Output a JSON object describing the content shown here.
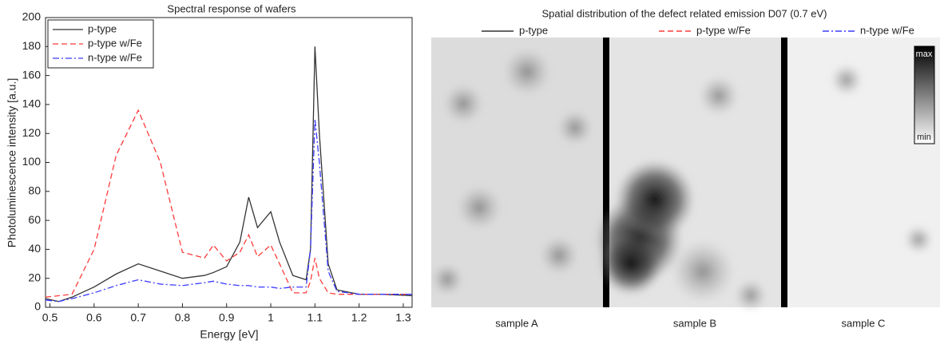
{
  "chart_data": {
    "type": "line",
    "title": "Spectral response of wafers",
    "x_label": "Energy [eV]",
    "y_label": "Photoluminescence intensity [a.u.]",
    "x": [
      0.49,
      0.52,
      0.55,
      0.6,
      0.65,
      0.7,
      0.75,
      0.8,
      0.85,
      0.87,
      0.9,
      0.93,
      0.95,
      0.97,
      1.0,
      1.02,
      1.05,
      1.08,
      1.09,
      1.1,
      1.11,
      1.13,
      1.15,
      1.2,
      1.25,
      1.32
    ],
    "series": [
      {
        "name": "p-type",
        "color": "#333333",
        "linestyle": "solid",
        "values": [
          6,
          4,
          7,
          14,
          23,
          30,
          25,
          20,
          22,
          24,
          28,
          45,
          76,
          55,
          66,
          45,
          22,
          19,
          40,
          180,
          120,
          30,
          12,
          9,
          9,
          8
        ]
      },
      {
        "name": "p-type w/Fe",
        "color": "#ff3b3b",
        "linestyle": "dashed",
        "values": [
          7,
          8,
          9,
          40,
          105,
          136,
          100,
          38,
          34,
          43,
          32,
          38,
          50,
          35,
          43,
          30,
          10,
          10,
          18,
          34,
          20,
          10,
          9,
          9,
          9,
          9
        ]
      },
      {
        "name": "n-type w/Fe",
        "color": "#3b3bff",
        "linestyle": "dashdot",
        "values": [
          5,
          4,
          6,
          10,
          15,
          19,
          16,
          15,
          17,
          18,
          16,
          15,
          15,
          14,
          14,
          13,
          14,
          14,
          40,
          130,
          100,
          25,
          11,
          9,
          9,
          9
        ]
      }
    ],
    "xlim": [
      0.49,
      1.32
    ],
    "xticks": [
      0.5,
      0.6,
      0.7,
      0.8,
      0.9,
      1,
      1.1,
      1.2,
      1.3
    ],
    "ylim": [
      0,
      200
    ],
    "yticks": [
      0,
      20,
      40,
      60,
      80,
      100,
      120,
      140,
      160,
      180,
      200
    ],
    "legend": "upper left"
  },
  "image_panel": {
    "title": "Spatial distribution of the defect related emission D07 (0.7 eV)",
    "samples": [
      "sample A",
      "sample B",
      "sample C"
    ],
    "colorbar": {
      "max": "max",
      "min": "min"
    }
  }
}
